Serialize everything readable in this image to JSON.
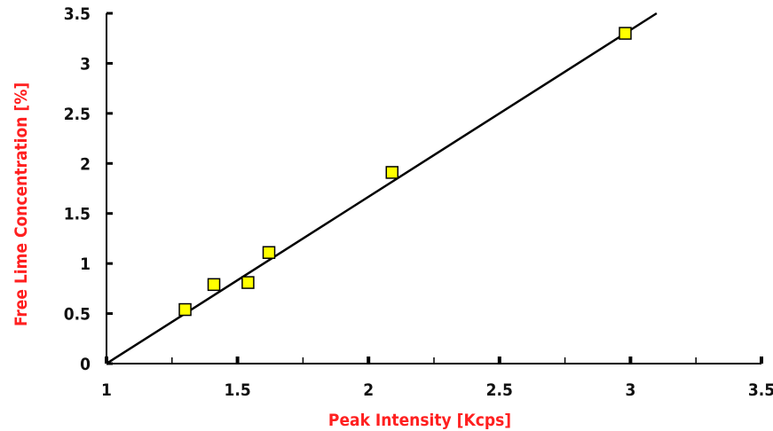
{
  "chart_data": {
    "type": "scatter",
    "xlabel": "Peak Intensity [Kcps]",
    "ylabel": "Free Lime Concentration [%]",
    "xlim": [
      1,
      3.5
    ],
    "ylim": [
      0,
      3.5
    ],
    "x_ticks": [
      "1",
      "1.5",
      "2",
      "2.5",
      "3",
      "3.5"
    ],
    "y_ticks": [
      "0",
      "0.5",
      "1",
      "1.5",
      "2",
      "2.5",
      "3",
      "3.5"
    ],
    "grid": false,
    "legend": "none",
    "series": [
      {
        "marker": "square",
        "x": [
          1.3,
          1.41,
          1.54,
          1.62,
          2.09,
          2.98
        ],
        "y": [
          0.54,
          0.79,
          0.81,
          1.11,
          1.91,
          3.3
        ]
      }
    ],
    "trendline": {
      "x": [
        1,
        3.1
      ],
      "y": [
        0,
        3.5
      ]
    },
    "colors": {
      "marker_fill": "#ffff00",
      "marker_edge": "#000000",
      "line": "#000000",
      "axis_title": "#ff2020"
    }
  }
}
